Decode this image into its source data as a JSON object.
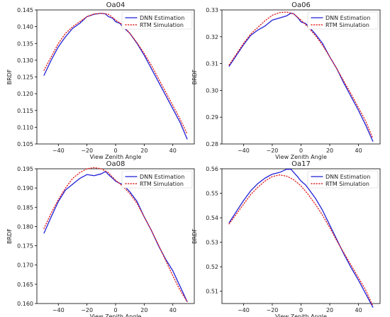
{
  "chart_data": [
    {
      "type": "line",
      "title": "Oa04",
      "xlabel": "View Zenith Angle",
      "ylabel": "BRDF",
      "xlim": [
        -55,
        55
      ],
      "ylim": [
        0.105,
        0.145
      ],
      "xticks": [
        -40,
        -20,
        0,
        20,
        40
      ],
      "xtick_labels": [
        "−40",
        "−20",
        "0",
        "20",
        "40"
      ],
      "yticks": [
        0.105,
        0.11,
        0.115,
        0.12,
        0.125,
        0.13,
        0.135,
        0.14,
        0.145
      ],
      "ytick_labels": [
        "0.105",
        "0.110",
        "0.115",
        "0.120",
        "0.125",
        "0.130",
        "0.135",
        "0.140",
        "0.145"
      ],
      "legend": "top-right",
      "series": [
        {
          "name": "DNN Estimation",
          "color": "#1f1fd6",
          "style": "solid",
          "x": [
            -50,
            -45,
            -40,
            -35,
            -30,
            -25,
            -20,
            -15,
            -10,
            -7,
            -5,
            -2,
            0,
            3,
            5,
            10,
            15,
            20,
            25,
            30,
            35,
            40,
            45,
            50
          ],
          "y": [
            0.1255,
            0.13,
            0.134,
            0.137,
            0.1395,
            0.141,
            0.143,
            0.1437,
            0.144,
            0.1438,
            0.143,
            0.1425,
            0.1415,
            0.141,
            0.14,
            0.138,
            0.135,
            0.1315,
            0.1275,
            0.1235,
            0.1195,
            0.1155,
            0.1115,
            0.1065
          ]
        },
        {
          "name": "RTM Simulation",
          "color": "#e02020",
          "style": "dotted",
          "x": [
            -50,
            -45,
            -40,
            -35,
            -30,
            -25,
            -20,
            -15,
            -10,
            -5,
            0,
            5,
            10,
            15,
            20,
            25,
            30,
            35,
            40,
            45,
            50
          ],
          "y": [
            0.127,
            0.131,
            0.135,
            0.138,
            0.14,
            0.1415,
            0.143,
            0.1438,
            0.144,
            0.1437,
            0.142,
            0.1405,
            0.138,
            0.1352,
            0.132,
            0.1285,
            0.1245,
            0.1205,
            0.1165,
            0.1125,
            0.108
          ]
        }
      ]
    },
    {
      "type": "line",
      "title": "Oa06",
      "xlabel": "View Zenith Angle",
      "ylabel": "BRDF",
      "xlim": [
        -55,
        55
      ],
      "ylim": [
        0.28,
        0.33
      ],
      "xticks": [
        -40,
        -20,
        0,
        20,
        40
      ],
      "xtick_labels": [
        "−40",
        "−20",
        "0",
        "20",
        "40"
      ],
      "yticks": [
        0.28,
        0.29,
        0.3,
        0.31,
        0.32,
        0.33
      ],
      "ytick_labels": [
        "0.28",
        "0.29",
        "0.30",
        "0.31",
        "0.32",
        "0.33"
      ],
      "legend": "top-right",
      "series": [
        {
          "name": "DNN Estimation",
          "color": "#1f1fd6",
          "style": "solid",
          "x": [
            -50,
            -45,
            -40,
            -35,
            -30,
            -25,
            -20,
            -15,
            -10,
            -7,
            -5,
            -2,
            0,
            3,
            5,
            10,
            15,
            20,
            25,
            30,
            35,
            40,
            45,
            50
          ],
          "y": [
            0.309,
            0.313,
            0.317,
            0.3205,
            0.3225,
            0.324,
            0.3262,
            0.327,
            0.3278,
            0.3288,
            0.3285,
            0.327,
            0.3255,
            0.325,
            0.324,
            0.321,
            0.3175,
            0.3125,
            0.308,
            0.3025,
            0.2975,
            0.2925,
            0.287,
            0.281
          ]
        },
        {
          "name": "RTM Simulation",
          "color": "#e02020",
          "style": "dotted",
          "x": [
            -50,
            -45,
            -40,
            -35,
            -30,
            -25,
            -20,
            -15,
            -10,
            -5,
            0,
            5,
            10,
            15,
            20,
            25,
            30,
            35,
            40,
            45,
            50
          ],
          "y": [
            0.3095,
            0.3135,
            0.3175,
            0.321,
            0.3235,
            0.326,
            0.328,
            0.329,
            0.3292,
            0.3285,
            0.3262,
            0.3235,
            0.3205,
            0.3168,
            0.3125,
            0.308,
            0.3032,
            0.2985,
            0.2935,
            0.2885,
            0.282
          ]
        }
      ]
    },
    {
      "type": "line",
      "title": "Oa08",
      "xlabel": "View Zenith Angle",
      "ylabel": "BRDF",
      "xlim": [
        -55,
        55
      ],
      "ylim": [
        0.16,
        0.195
      ],
      "xticks": [
        -40,
        -20,
        0,
        20,
        40
      ],
      "xtick_labels": [
        "−40",
        "−20",
        "0",
        "20",
        "40"
      ],
      "yticks": [
        0.16,
        0.165,
        0.17,
        0.175,
        0.18,
        0.185,
        0.19,
        0.195
      ],
      "ytick_labels": [
        "0.160",
        "0.165",
        "0.170",
        "0.175",
        "0.180",
        "0.185",
        "0.190",
        "0.195"
      ],
      "legend": "top-right",
      "series": [
        {
          "name": "DNN Estimation",
          "color": "#1f1fd6",
          "style": "solid",
          "x": [
            -50,
            -45,
            -40,
            -35,
            -30,
            -25,
            -20,
            -15,
            -10,
            -7,
            -5,
            -2,
            0,
            3,
            5,
            10,
            15,
            20,
            25,
            30,
            35,
            40,
            45,
            50
          ],
          "y": [
            0.1783,
            0.1825,
            0.1865,
            0.1895,
            0.191,
            0.1925,
            0.1935,
            0.1932,
            0.1937,
            0.1943,
            0.1935,
            0.1925,
            0.1918,
            0.1912,
            0.191,
            0.189,
            0.1865,
            0.1825,
            0.179,
            0.175,
            0.1715,
            0.1685,
            0.1645,
            0.1605
          ]
        },
        {
          "name": "RTM Simulation",
          "color": "#e02020",
          "style": "dotted",
          "x": [
            -50,
            -45,
            -40,
            -35,
            -30,
            -25,
            -20,
            -15,
            -10,
            -5,
            0,
            5,
            10,
            15,
            20,
            25,
            30,
            35,
            40,
            45,
            50
          ],
          "y": [
            0.1795,
            0.1835,
            0.187,
            0.19,
            0.1925,
            0.194,
            0.195,
            0.1953,
            0.195,
            0.194,
            0.192,
            0.1905,
            0.1885,
            0.186,
            0.1825,
            0.179,
            0.1752,
            0.1712,
            0.1672,
            0.1635,
            0.1605
          ]
        }
      ]
    },
    {
      "type": "line",
      "title": "Oa17",
      "xlabel": "View Zenith Angle",
      "ylabel": "BRDF",
      "xlim": [
        -55,
        55
      ],
      "ylim": [
        0.505,
        0.56
      ],
      "xticks": [
        -40,
        -20,
        0,
        20,
        40
      ],
      "xtick_labels": [
        "−40",
        "−20",
        "0",
        "20",
        "40"
      ],
      "yticks": [
        0.51,
        0.52,
        0.53,
        0.54,
        0.55,
        0.56
      ],
      "ytick_labels": [
        "0.51",
        "0.52",
        "0.53",
        "0.54",
        "0.55",
        "0.56"
      ],
      "legend": "top-right",
      "series": [
        {
          "name": "DNN Estimation",
          "color": "#1f1fd6",
          "style": "solid",
          "x": [
            -50,
            -45,
            -40,
            -35,
            -30,
            -25,
            -20,
            -15,
            -10,
            -7,
            -5,
            -2,
            0,
            3,
            5,
            10,
            15,
            20,
            25,
            30,
            35,
            40,
            45,
            50
          ],
          "y": [
            0.538,
            0.5425,
            0.547,
            0.551,
            0.554,
            0.5562,
            0.5578,
            0.5585,
            0.5598,
            0.5598,
            0.5585,
            0.5565,
            0.555,
            0.5535,
            0.552,
            0.548,
            0.543,
            0.537,
            0.531,
            0.525,
            0.5195,
            0.5145,
            0.509,
            0.5035
          ]
        },
        {
          "name": "RTM Simulation",
          "color": "#e02020",
          "style": "dotted",
          "x": [
            -50,
            -45,
            -40,
            -35,
            -30,
            -25,
            -20,
            -15,
            -10,
            -5,
            0,
            5,
            10,
            15,
            20,
            25,
            30,
            35,
            40,
            45,
            50
          ],
          "y": [
            0.5375,
            0.5415,
            0.5455,
            0.5495,
            0.5525,
            0.555,
            0.5568,
            0.5575,
            0.557,
            0.5555,
            0.553,
            0.5495,
            0.5455,
            0.541,
            0.536,
            0.5305,
            0.5255,
            0.5205,
            0.5155,
            0.5105,
            0.504
          ]
        }
      ]
    }
  ]
}
